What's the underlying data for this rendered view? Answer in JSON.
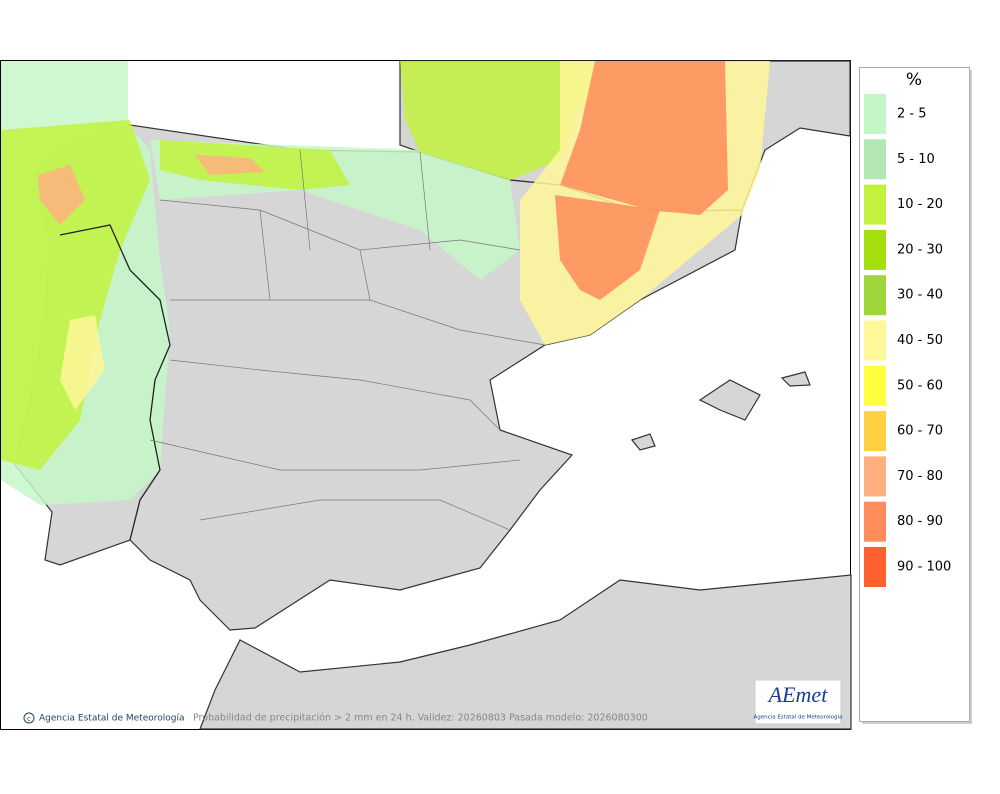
{
  "map": {
    "caption": "Probabilidad de precipitación > 2 mm en 24 h. Validez: 20260803 Pasada modelo: 2026080300",
    "credit": "Agencia Estatal de Meteorología"
  },
  "logo": {
    "name": "AEmet",
    "subtitle": "Agencia Estatal de Meteorología"
  },
  "legend": {
    "title": "%",
    "items": [
      {
        "label": "2 - 5",
        "color": "#c4f7c8"
      },
      {
        "label": "5 - 10",
        "color": "#b2e8b4"
      },
      {
        "label": "10 - 20",
        "color": "#c2f23e"
      },
      {
        "label": "20 - 30",
        "color": "#a6df0e"
      },
      {
        "label": "30 - 40",
        "color": "#9fd63a"
      },
      {
        "label": "40 - 50",
        "color": "#fff799"
      },
      {
        "label": "50 - 60",
        "color": "#ffff40"
      },
      {
        "label": "60 - 70",
        "color": "#ffd040"
      },
      {
        "label": "70 - 80",
        "color": "#ffb080"
      },
      {
        "label": "80 - 90",
        "color": "#ff8c5a"
      },
      {
        "label": "90 - 100",
        "color": "#ff6030"
      }
    ]
  }
}
